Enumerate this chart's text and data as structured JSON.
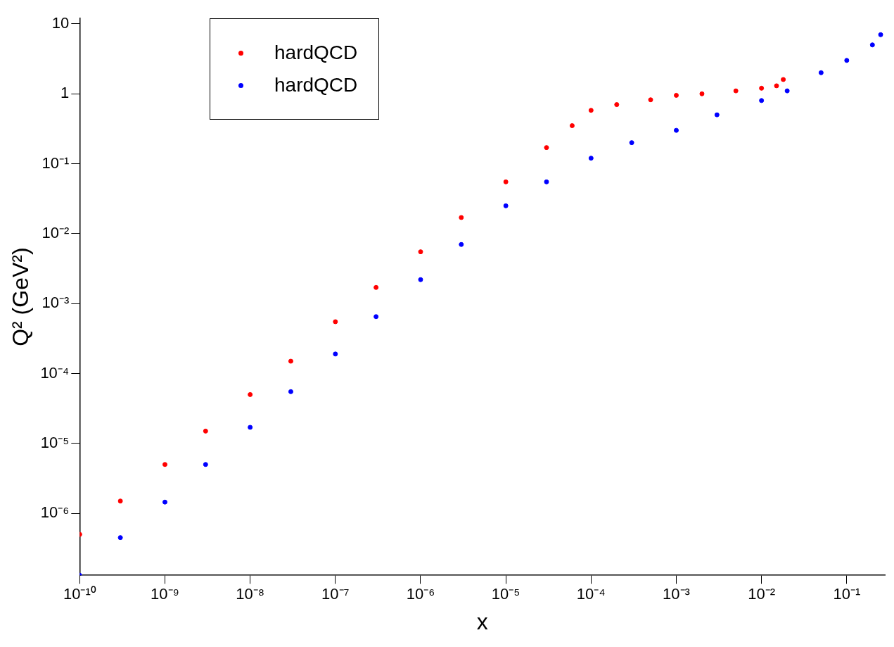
{
  "chart_data": {
    "type": "scatter",
    "xlabel": "x",
    "ylabel": "Q² (GeV²)",
    "log": "xy",
    "grid": false,
    "legend": "top left",
    "marker": "circle",
    "xlim": [
      1e-10,
      0.28
    ],
    "ylim": [
      1.3e-07,
      12
    ],
    "xticks": [
      {
        "value": 1e-10,
        "label": "10⁻¹⁰"
      },
      {
        "value": 1e-09,
        "label": "10⁻⁹"
      },
      {
        "value": 1e-08,
        "label": "10⁻⁸"
      },
      {
        "value": 1e-07,
        "label": "10⁻⁷"
      },
      {
        "value": 1e-06,
        "label": "10⁻⁶"
      },
      {
        "value": 1e-05,
        "label": "10⁻⁵"
      },
      {
        "value": 0.0001,
        "label": "10⁻⁴"
      },
      {
        "value": 0.001,
        "label": "10⁻³"
      },
      {
        "value": 0.01,
        "label": "10⁻²"
      },
      {
        "value": 0.1,
        "label": "10⁻¹"
      }
    ],
    "yticks": [
      {
        "value": 1e-06,
        "label": "10⁻⁶"
      },
      {
        "value": 1e-05,
        "label": "10⁻⁵"
      },
      {
        "value": 0.0001,
        "label": "10⁻⁴"
      },
      {
        "value": 0.001,
        "label": "10⁻³"
      },
      {
        "value": 0.01,
        "label": "10⁻²"
      },
      {
        "value": 0.1,
        "label": "10⁻¹"
      },
      1,
      10
    ],
    "series": [
      {
        "name": "hardQCD",
        "color": "#ff0000",
        "x": [
          1e-10,
          3e-10,
          1e-09,
          3e-09,
          1e-08,
          3e-08,
          1e-07,
          3e-07,
          1e-06,
          3e-06,
          1e-05,
          3e-05,
          6e-05,
          0.0001,
          0.0002,
          0.0005,
          0.001,
          0.002,
          0.005,
          0.01,
          0.015,
          0.018
        ],
        "values": [
          5e-07,
          1.5e-06,
          5e-06,
          1.5e-05,
          5e-05,
          0.00015,
          0.00055,
          0.0017,
          0.0055,
          0.017,
          0.055,
          0.17,
          0.35,
          0.58,
          0.7,
          0.82,
          0.95,
          1.0,
          1.1,
          1.2,
          1.3,
          1.6
        ]
      },
      {
        "name": "hardQCD",
        "color": "#0000ff",
        "x": [
          1e-10,
          3e-10,
          1e-09,
          3e-09,
          1e-08,
          3e-08,
          1e-07,
          3e-07,
          1e-06,
          3e-06,
          1e-05,
          3e-05,
          0.0001,
          0.0003,
          0.001,
          0.003,
          0.01,
          0.02,
          0.05,
          0.1,
          0.2,
          0.25
        ],
        "values": [
          1.3e-07,
          4.5e-07,
          1.45e-06,
          5e-06,
          1.7e-05,
          5.5e-05,
          0.00019,
          0.00065,
          0.0022,
          0.007,
          0.025,
          0.055,
          0.12,
          0.2,
          0.3,
          0.5,
          0.8,
          1.1,
          2,
          3,
          5,
          7
        ]
      }
    ]
  }
}
